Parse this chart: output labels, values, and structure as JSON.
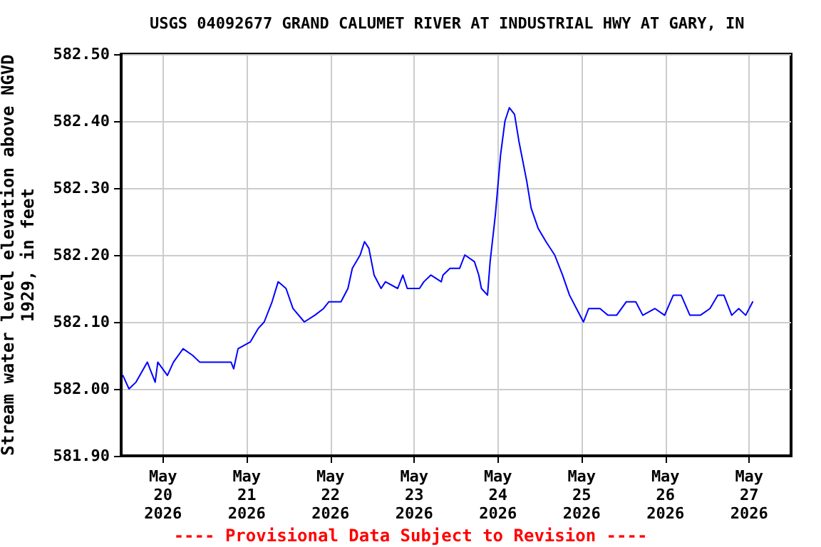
{
  "chart_data": {
    "type": "line",
    "title": "USGS 04092677 GRAND CALUMET RIVER AT INDUSTRIAL HWY AT GARY, IN",
    "ylabel": "Stream water level elevation above NGVD\n1929, in feet",
    "annotations": [
      "---- Provisional Data Subject to Revision ----"
    ],
    "x": [
      "2026-05-19T12:30",
      "2026-05-19T14:15",
      "2026-05-19T16:15",
      "2026-05-19T19:30",
      "2026-05-19T21:45",
      "2026-05-19T22:30",
      "2026-05-20T01:15",
      "2026-05-20T03:00",
      "2026-05-20T05:45",
      "2026-05-20T08:30",
      "2026-05-20T10:30",
      "2026-05-20T19:30",
      "2026-05-20T20:15",
      "2026-05-20T21:30",
      "2026-05-21T01:00",
      "2026-05-21T03:15",
      "2026-05-21T05:00",
      "2026-05-21T07:15",
      "2026-05-21T09:00",
      "2026-05-21T11:15",
      "2026-05-21T13:15",
      "2026-05-21T16:30",
      "2026-05-21T19:30",
      "2026-05-21T22:00",
      "2026-05-21T23:30",
      "2026-05-22T03:00",
      "2026-05-22T05:00",
      "2026-05-22T06:15",
      "2026-05-22T08:30",
      "2026-05-22T09:45",
      "2026-05-22T11:00",
      "2026-05-22T12:30",
      "2026-05-22T14:30",
      "2026-05-22T15:45",
      "2026-05-22T19:15",
      "2026-05-22T20:45",
      "2026-05-22T22:00",
      "2026-05-23T01:30",
      "2026-05-23T02:45",
      "2026-05-23T04:45",
      "2026-05-23T07:45",
      "2026-05-23T08:15",
      "2026-05-23T10:15",
      "2026-05-23T13:00",
      "2026-05-23T14:30",
      "2026-05-23T17:15",
      "2026-05-23T18:30",
      "2026-05-23T19:15",
      "2026-05-23T21:00",
      "2026-05-23T21:45",
      "2026-05-23T23:15",
      "2026-05-24T00:45",
      "2026-05-24T02:00",
      "2026-05-24T03:15",
      "2026-05-24T04:45",
      "2026-05-24T06:00",
      "2026-05-24T08:15",
      "2026-05-24T09:30",
      "2026-05-24T11:30",
      "2026-05-24T13:45",
      "2026-05-24T16:15",
      "2026-05-24T18:30",
      "2026-05-24T20:30",
      "2026-05-24T22:30",
      "2026-05-25T00:30",
      "2026-05-25T02:00",
      "2026-05-25T05:15",
      "2026-05-25T07:30",
      "2026-05-25T10:00",
      "2026-05-25T12:45",
      "2026-05-25T15:30",
      "2026-05-25T17:30",
      "2026-05-25T21:00",
      "2026-05-25T23:45",
      "2026-05-26T02:15",
      "2026-05-26T04:30",
      "2026-05-26T07:00",
      "2026-05-26T10:00",
      "2026-05-26T12:45",
      "2026-05-26T15:00",
      "2026-05-26T16:45",
      "2026-05-26T19:00",
      "2026-05-26T21:00",
      "2026-05-26T23:00",
      "2026-05-27T01:00"
    ],
    "series": [
      {
        "color": "#0000ff",
        "values": [
          582.02,
          582.0,
          582.01,
          582.04,
          582.01,
          582.04,
          582.02,
          582.04,
          582.06,
          582.05,
          582.04,
          582.04,
          582.03,
          582.06,
          582.07,
          582.09,
          582.1,
          582.13,
          582.16,
          582.15,
          582.12,
          582.1,
          582.11,
          582.12,
          582.13,
          582.13,
          582.15,
          582.18,
          582.2,
          582.22,
          582.21,
          582.17,
          582.15,
          582.16,
          582.15,
          582.17,
          582.15,
          582.15,
          582.16,
          582.17,
          582.16,
          582.17,
          582.18,
          582.18,
          582.2,
          582.19,
          582.17,
          582.15,
          582.14,
          582.19,
          582.26,
          582.35,
          582.4,
          582.42,
          582.41,
          582.37,
          582.31,
          582.27,
          582.24,
          582.22,
          582.2,
          582.17,
          582.14,
          582.12,
          582.1,
          582.12,
          582.12,
          582.11,
          582.11,
          582.13,
          582.13,
          582.11,
          582.12,
          582.11,
          582.14,
          582.14,
          582.11,
          582.11,
          582.12,
          582.14,
          582.14,
          582.11,
          582.12,
          582.11,
          582.13
        ]
      }
    ],
    "xlim": [
      "2026-05-19T12:00",
      "2026-05-27T12:00"
    ],
    "xticks": [
      {
        "value": "2026-05-20",
        "label": "May\n20\n2026"
      },
      {
        "value": "2026-05-21",
        "label": "May\n21\n2026"
      },
      {
        "value": "2026-05-22",
        "label": "May\n22\n2026"
      },
      {
        "value": "2026-05-23",
        "label": "May\n23\n2026"
      },
      {
        "value": "2026-05-24",
        "label": "May\n24\n2026"
      },
      {
        "value": "2026-05-25",
        "label": "May\n25\n2026"
      },
      {
        "value": "2026-05-26",
        "label": "May\n26\n2026"
      },
      {
        "value": "2026-05-27",
        "label": "May\n27\n2026"
      }
    ],
    "ylim": [
      581.9,
      582.5
    ],
    "yticks": [
      {
        "value": 581.9,
        "label": "581.90"
      },
      {
        "value": 582.0,
        "label": "582.00"
      },
      {
        "value": 582.1,
        "label": "582.10"
      },
      {
        "value": 582.2,
        "label": "582.20"
      },
      {
        "value": 582.3,
        "label": "582.30"
      },
      {
        "value": 582.4,
        "label": "582.40"
      },
      {
        "value": 582.5,
        "label": "582.50"
      }
    ],
    "grid": true,
    "marker": "none",
    "line_style": "solid"
  }
}
